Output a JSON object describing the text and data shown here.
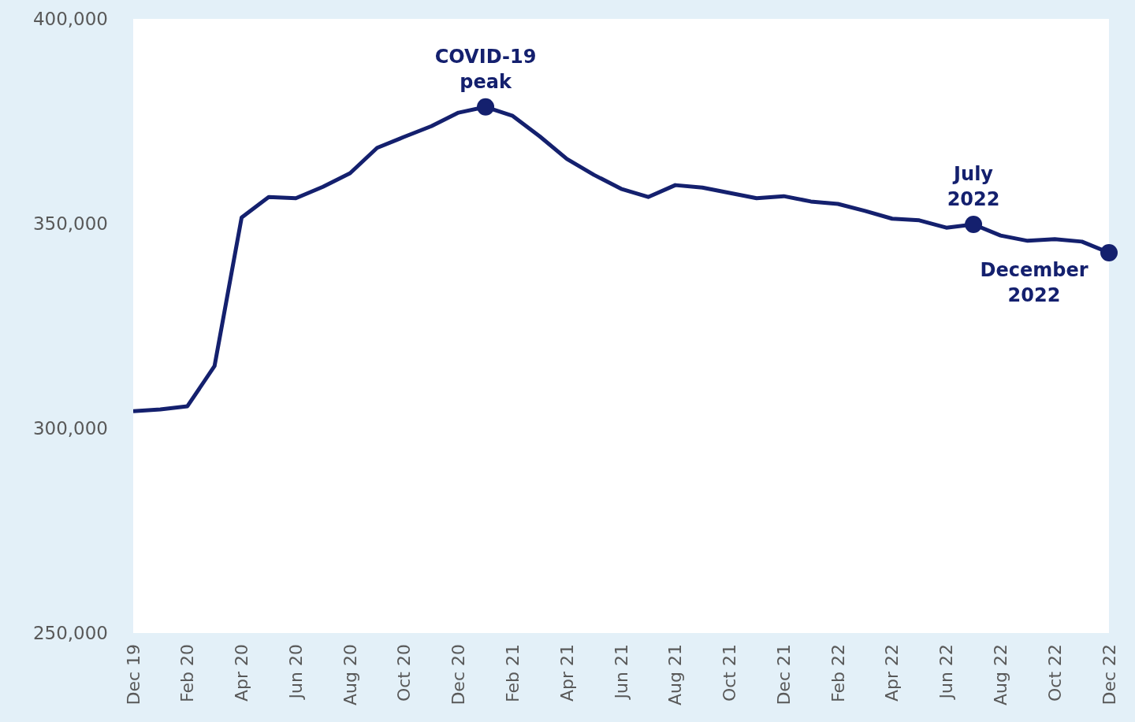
{
  "chart_data": {
    "type": "line",
    "x": [
      "2019-12",
      "2020-01",
      "2020-02",
      "2020-03",
      "2020-04",
      "2020-05",
      "2020-06",
      "2020-07",
      "2020-08",
      "2020-09",
      "2020-10",
      "2020-11",
      "2020-12",
      "2021-01",
      "2021-02",
      "2021-03",
      "2021-04",
      "2021-05",
      "2021-06",
      "2021-07",
      "2021-08",
      "2021-09",
      "2021-10",
      "2021-11",
      "2021-12",
      "2022-01",
      "2022-02",
      "2022-03",
      "2022-04",
      "2022-05",
      "2022-06",
      "2022-07",
      "2022-08",
      "2022-09",
      "2022-10",
      "2022-11",
      "2022-12"
    ],
    "series": [
      {
        "color": "#14206e",
        "values": [
          304200,
          304600,
          305400,
          315200,
          351500,
          356500,
          356200,
          359000,
          362300,
          368500,
          371200,
          373800,
          377100,
          378500,
          376300,
          371300,
          365800,
          361900,
          358500,
          356500,
          359400,
          358800,
          357500,
          356200,
          356700,
          355400,
          354800,
          353100,
          351200,
          350800,
          349000,
          349800,
          347100,
          345800,
          346200,
          345600,
          342900
        ]
      }
    ],
    "xlim": [
      "2019-12",
      "2022-12"
    ],
    "xticks": [
      {
        "value": "2019-12",
        "label": "Dec 19"
      },
      {
        "value": "2020-02",
        "label": "Feb 20"
      },
      {
        "value": "2020-04",
        "label": "Apr 20"
      },
      {
        "value": "2020-06",
        "label": "Jun 20"
      },
      {
        "value": "2020-08",
        "label": "Aug 20"
      },
      {
        "value": "2020-10",
        "label": "Oct 20"
      },
      {
        "value": "2020-12",
        "label": "Dec 20"
      },
      {
        "value": "2021-02",
        "label": "Feb 21"
      },
      {
        "value": "2021-04",
        "label": "Apr 21"
      },
      {
        "value": "2021-06",
        "label": "Jun 21"
      },
      {
        "value": "2021-08",
        "label": "Aug 21"
      },
      {
        "value": "2021-10",
        "label": "Oct 21"
      },
      {
        "value": "2021-12",
        "label": "Dec 21"
      },
      {
        "value": "2022-02",
        "label": "Feb 22"
      },
      {
        "value": "2022-04",
        "label": "Apr 22"
      },
      {
        "value": "2022-06",
        "label": "Jun 22"
      },
      {
        "value": "2022-08",
        "label": "Aug 22"
      },
      {
        "value": "2022-10",
        "label": "Oct 22"
      },
      {
        "value": "2022-12",
        "label": "Dec 22"
      }
    ],
    "ylim": [
      250000,
      400000
    ],
    "yticks": [
      {
        "value": 250000,
        "label": "250,000"
      },
      {
        "value": 300000,
        "label": "300,000"
      },
      {
        "value": 350000,
        "label": "350,000"
      },
      {
        "value": 400000,
        "label": "400,000"
      }
    ],
    "marker": "none",
    "legend": false,
    "annotations": [
      {
        "text": "COVID-19 peak",
        "x": "2021-01",
        "y": 378500
      },
      {
        "text": "July 2022",
        "x": "2022-07",
        "y": 349800
      },
      {
        "text": "December 2022",
        "x": "2022-12",
        "y": 342900
      }
    ]
  }
}
